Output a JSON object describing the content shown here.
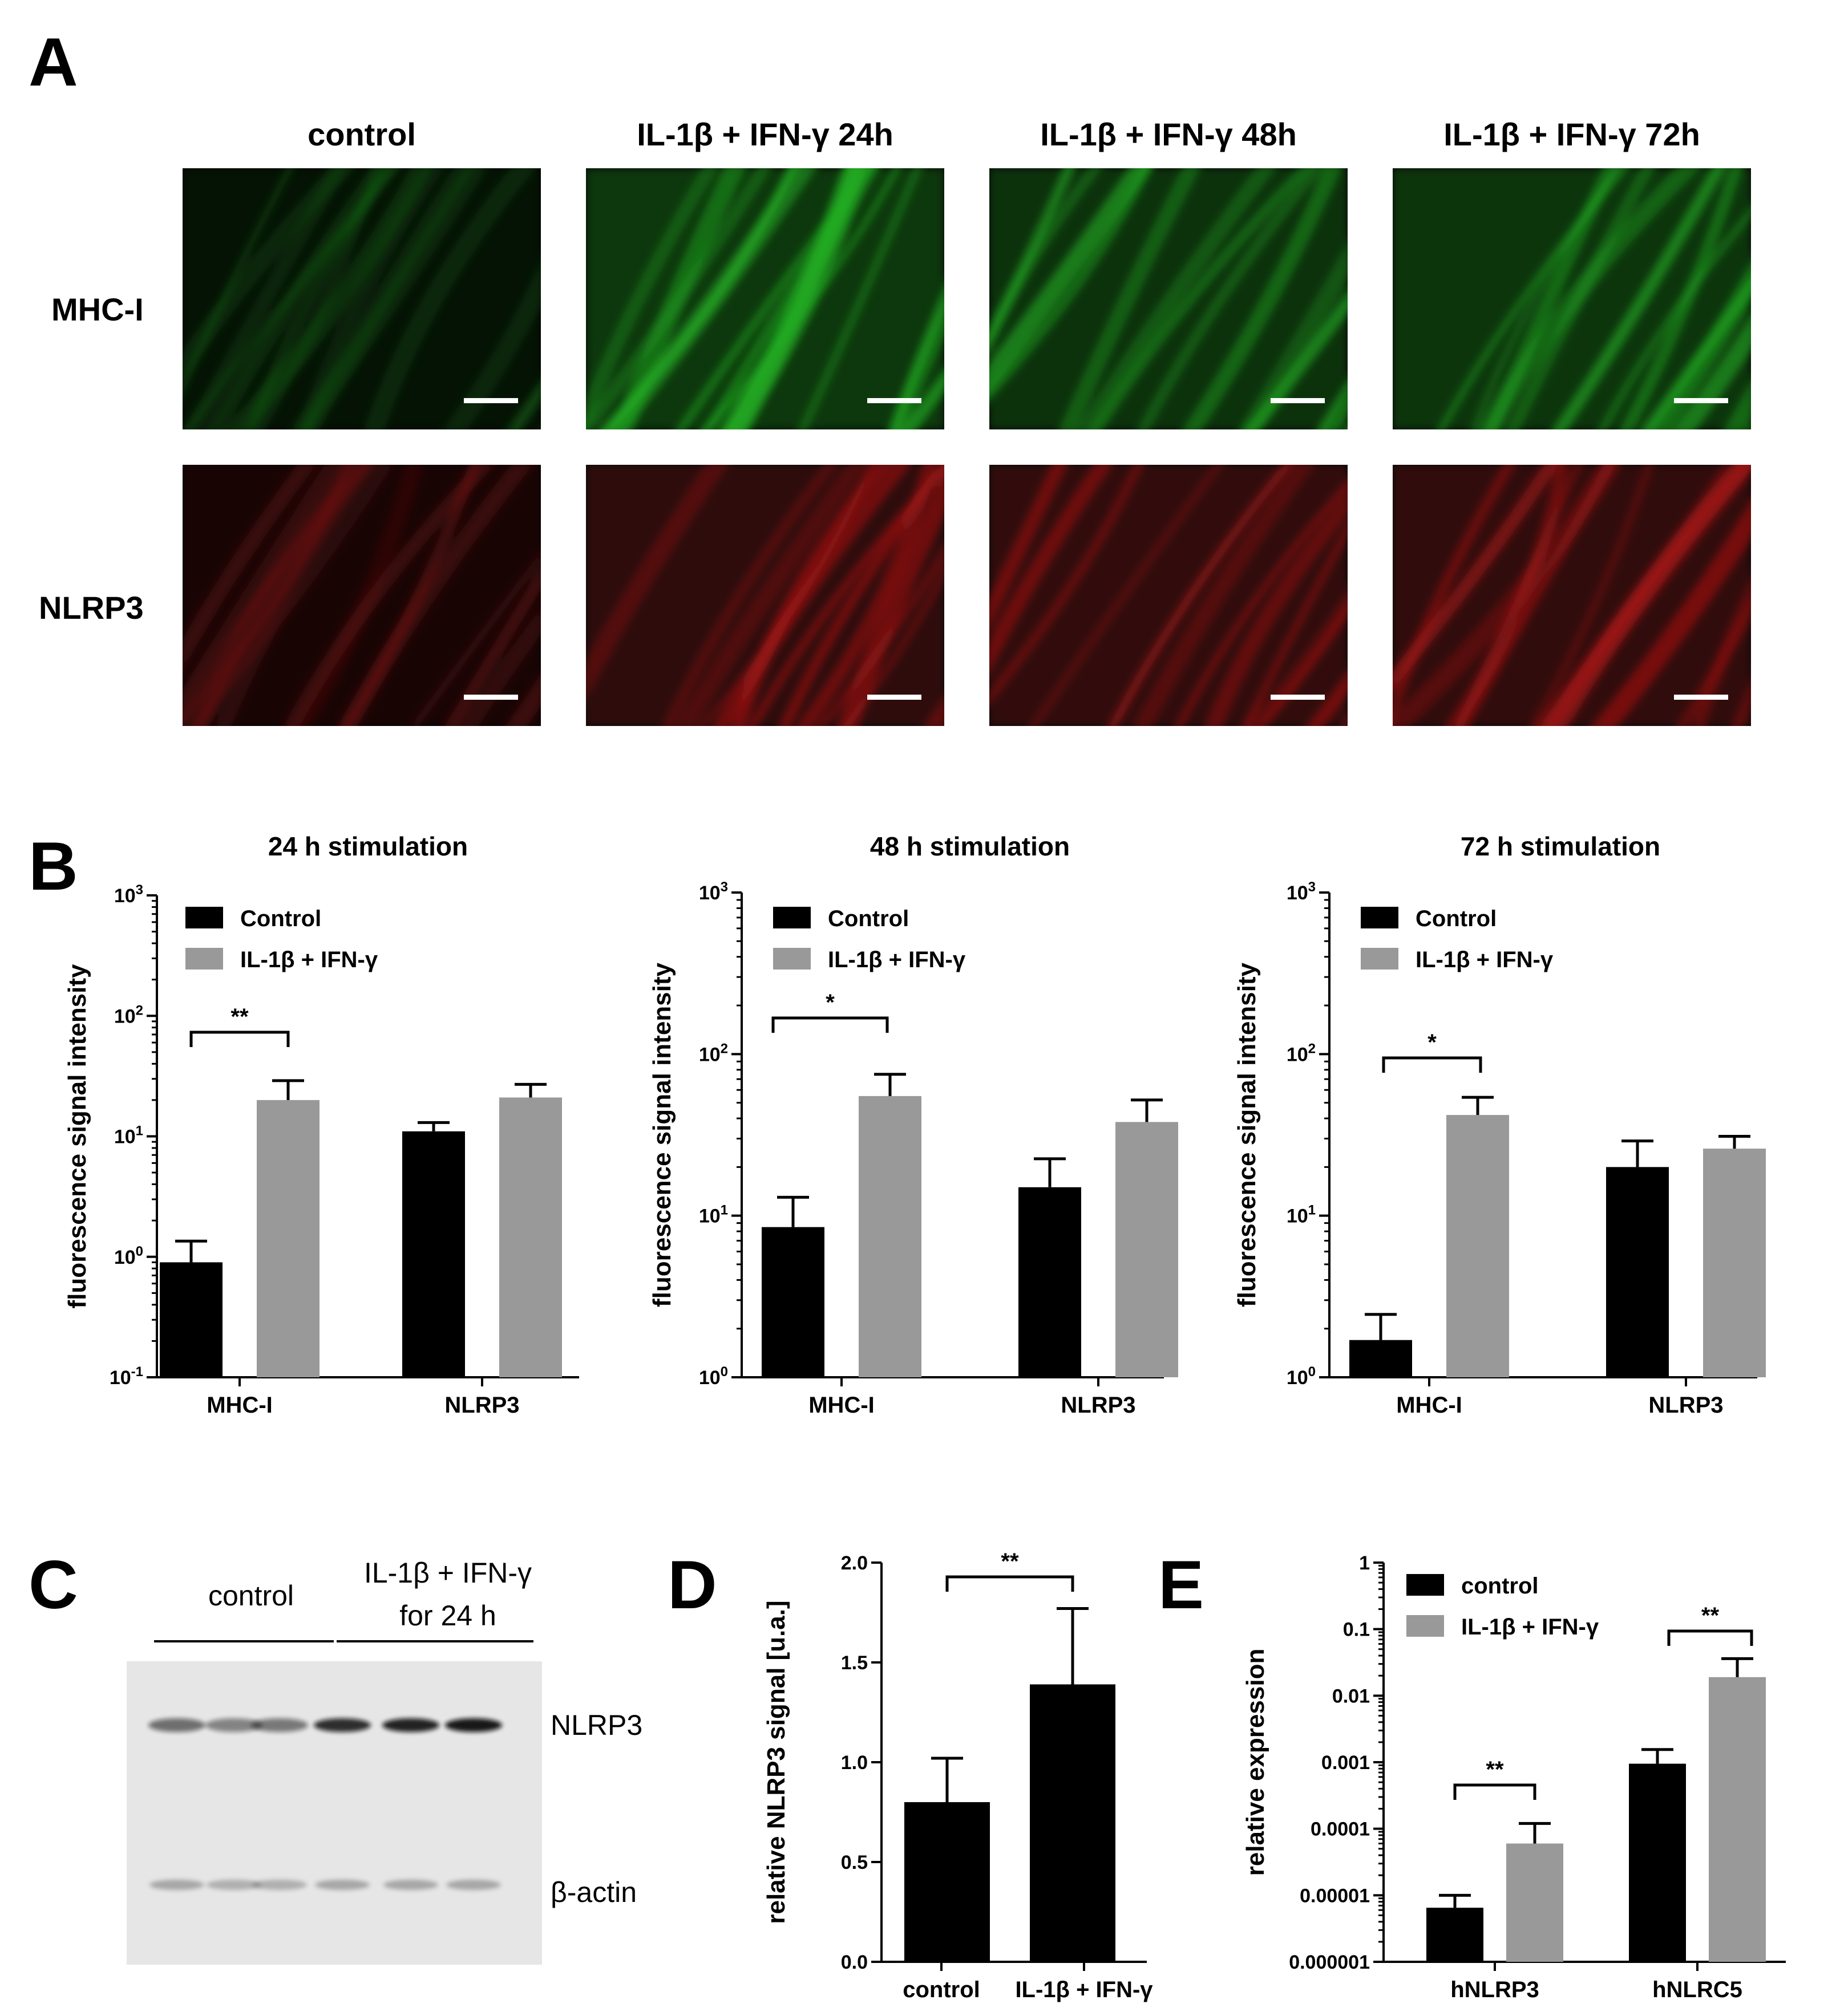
{
  "panel_letters": {
    "a": "A",
    "b": "B",
    "c": "C",
    "d": "D",
    "e": "E"
  },
  "micrographs": {
    "columns": [
      "control",
      "IL-1β + IFN-γ 24h",
      "IL-1β + IFN-γ 48h",
      "IL-1β + IFN-γ 72h"
    ],
    "rows": [
      "MHC-I",
      "NLRP3"
    ],
    "colors": {
      "MHC-I": "#22b022",
      "NLRP3": "#b01818"
    },
    "intensity": [
      [
        0.25,
        0.85,
        0.75,
        0.8
      ],
      [
        0.35,
        0.7,
        0.75,
        0.75
      ]
    ]
  },
  "blot": {
    "group_labels": [
      "control",
      "IL-1β + IFN-γ",
      "for 24 h"
    ],
    "band_labels": [
      "NLRP3",
      "β-actin"
    ],
    "nlrp3_band_strength": [
      0.55,
      0.45,
      0.5,
      0.85,
      0.9,
      0.95
    ],
    "actin_band_strength": [
      0.35,
      0.3,
      0.3,
      0.35,
      0.35,
      0.35
    ]
  },
  "chart_data": [
    {
      "type": "bar",
      "title": "24 h stimulation",
      "ylabel": "fluorescence signal intensity",
      "yscale": "log",
      "ylim": [
        0.1,
        1000
      ],
      "yticks": [
        "10-1",
        "100",
        "101",
        "102",
        "103"
      ],
      "categories": [
        "MHC-I",
        "NLRP3"
      ],
      "series": [
        {
          "name": "Control",
          "color": "#000000",
          "values": [
            0.9,
            11
          ],
          "errors": [
            0.45,
            2
          ]
        },
        {
          "name": "IL-1β + IFN-γ",
          "color": "#999999",
          "values": [
            20,
            21
          ],
          "errors": [
            9,
            6
          ]
        }
      ],
      "significance": [
        {
          "category": "MHC-I",
          "label": "**"
        }
      ],
      "legend": "top-left"
    },
    {
      "type": "bar",
      "title": "48 h stimulation",
      "ylabel": "fluorescence signal intensity",
      "yscale": "log",
      "ylim": [
        1,
        1000
      ],
      "yticks": [
        "100",
        "101",
        "102",
        "103"
      ],
      "categories": [
        "MHC-I",
        "NLRP3"
      ],
      "series": [
        {
          "name": "Control",
          "color": "#000000",
          "values": [
            8.5,
            15
          ],
          "errors": [
            4.5,
            7.5
          ]
        },
        {
          "name": "IL-1β + IFN-γ",
          "color": "#999999",
          "values": [
            55,
            38
          ],
          "errors": [
            20,
            14
          ]
        }
      ],
      "significance": [
        {
          "category": "MHC-I",
          "label": "*"
        }
      ],
      "legend": "top-left"
    },
    {
      "type": "bar",
      "title": "72 h stimulation",
      "ylabel": "fluorescence signal intensity",
      "yscale": "log",
      "ylim": [
        1,
        1000
      ],
      "yticks": [
        "100",
        "101",
        "102",
        "103"
      ],
      "categories": [
        "MHC-I",
        "NLRP3"
      ],
      "series": [
        {
          "name": "Control",
          "color": "#000000",
          "values": [
            1.7,
            20
          ],
          "errors": [
            0.75,
            9
          ]
        },
        {
          "name": "IL-1β + IFN-γ",
          "color": "#999999",
          "values": [
            42,
            26
          ],
          "errors": [
            12,
            5
          ]
        }
      ],
      "significance": [
        {
          "category": "MHC-I",
          "label": "*"
        }
      ],
      "legend": "top-left"
    },
    {
      "type": "bar",
      "title": "",
      "ylabel": "relative NLRP3 signal [u.a.]",
      "yscale": "linear",
      "ylim": [
        0,
        2.0
      ],
      "yticks": [
        "0.0",
        "0.5",
        "1.0",
        "1.5",
        "2.0"
      ],
      "categories": [
        "control",
        "IL-1β + IFN-γ"
      ],
      "series": [
        {
          "name": "",
          "color": "#000000",
          "values": [
            0.8,
            1.39
          ],
          "errors": [
            0.22,
            0.38
          ]
        }
      ],
      "significance": [
        {
          "label": "**"
        }
      ]
    },
    {
      "type": "bar",
      "title": "",
      "ylabel": "relative expression",
      "yscale": "log",
      "ylim": [
        1e-06,
        1
      ],
      "yticks": [
        "0.000001",
        "0.00001",
        "0.0001",
        "0.001",
        "0.01",
        "0.1",
        "1"
      ],
      "categories": [
        "hNLRP3",
        "hNLRC5"
      ],
      "series": [
        {
          "name": "control",
          "color": "#000000",
          "values": [
            6.5e-06,
            0.00095
          ],
          "errors": [
            3.5e-06,
            0.0006
          ]
        },
        {
          "name": "IL-1β + IFN-γ",
          "color": "#999999",
          "values": [
            6e-05,
            0.019
          ],
          "errors": [
            6e-05,
            0.017
          ]
        }
      ],
      "significance": [
        {
          "category": "hNLRP3",
          "label": "**"
        },
        {
          "category": "hNLRC5",
          "label": "**"
        }
      ],
      "legend": "top-left"
    }
  ]
}
